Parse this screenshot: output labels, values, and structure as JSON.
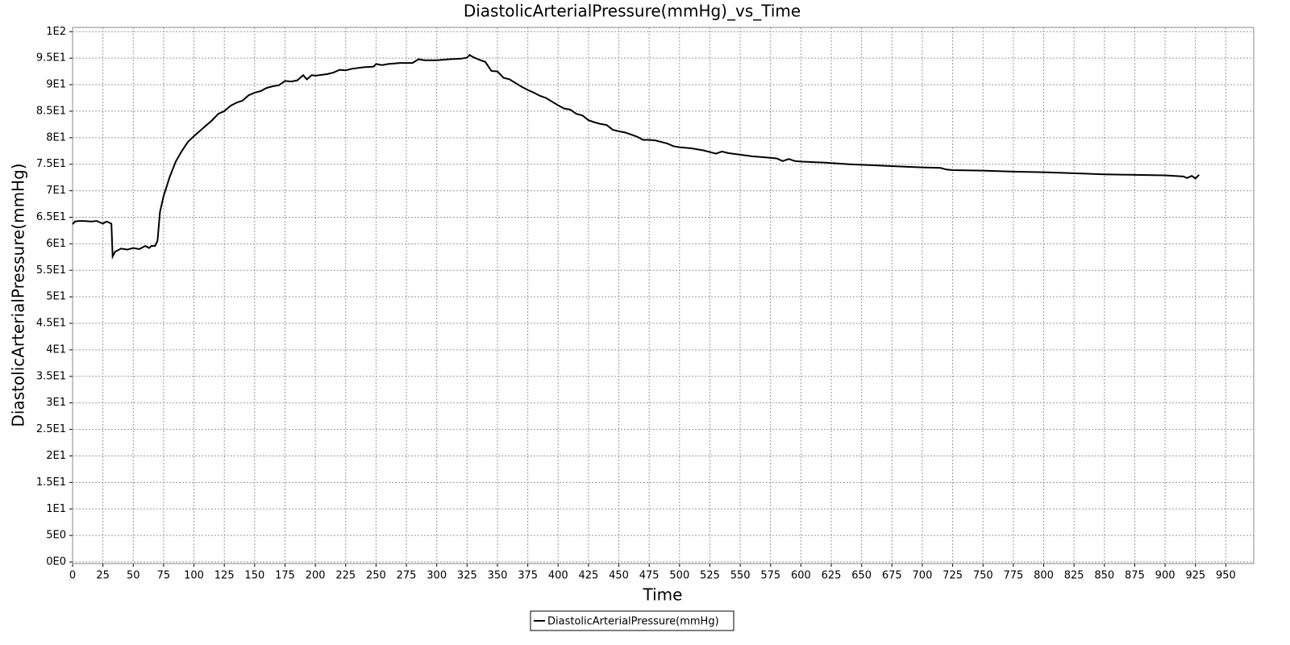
{
  "chart_data": {
    "type": "line",
    "title": "DiastolicArterialPressure(mmHg)_vs_Time",
    "x_label": "Time",
    "y_label": "DiastolicArterialPressure(mmHg)",
    "x": [
      0,
      2,
      5,
      10,
      15,
      20,
      25,
      28,
      32,
      33,
      35,
      40,
      45,
      50,
      55,
      60,
      63,
      65,
      68,
      70,
      72,
      75,
      80,
      85,
      90,
      95,
      100,
      105,
      110,
      115,
      120,
      125,
      130,
      135,
      140,
      145,
      150,
      155,
      160,
      165,
      170,
      175,
      180,
      185,
      190,
      193,
      197,
      200,
      210,
      215,
      220,
      225,
      230,
      240,
      248,
      250,
      255,
      260,
      270,
      280,
      285,
      290,
      300,
      310,
      320,
      325,
      327,
      330,
      335,
      340,
      345,
      350,
      355,
      360,
      365,
      370,
      375,
      380,
      385,
      390,
      395,
      400,
      405,
      410,
      415,
      420,
      425,
      430,
      435,
      440,
      445,
      450,
      455,
      460,
      465,
      470,
      475,
      480,
      485,
      490,
      495,
      500,
      510,
      520,
      525,
      530,
      535,
      540,
      550,
      560,
      570,
      580,
      585,
      590,
      595,
      600,
      620,
      640,
      660,
      680,
      700,
      715,
      720,
      725,
      750,
      775,
      800,
      825,
      850,
      875,
      900,
      915,
      918,
      922,
      925,
      928
    ],
    "series": [
      {
        "name": "DiastolicArterialPressure(mmHg)",
        "color": "#000000",
        "values": [
          63.7,
          64.2,
          64.3,
          64.3,
          64.2,
          64.3,
          63.8,
          64.2,
          63.8,
          57.6,
          58.5,
          59.1,
          58.9,
          59.2,
          59,
          59.6,
          59.2,
          59.6,
          59.6,
          60.6,
          66,
          69,
          72.6,
          75.5,
          77.5,
          79.2,
          80.3,
          81.3,
          82.3,
          83.3,
          84.5,
          85,
          86,
          86.6,
          87,
          88,
          88.5,
          88.8,
          89.4,
          89.7,
          89.9,
          90.7,
          90.6,
          90.8,
          91.8,
          91,
          91.8,
          91.7,
          92,
          92.3,
          92.8,
          92.7,
          93,
          93.3,
          93.4,
          93.9,
          93.7,
          93.9,
          94.1,
          94.1,
          94.8,
          94.6,
          94.6,
          94.8,
          94.9,
          95.1,
          95.6,
          95.2,
          94.7,
          94.3,
          92.6,
          92.5,
          91.3,
          91,
          90.3,
          89.6,
          89,
          88.5,
          87.9,
          87.5,
          86.8,
          86.1,
          85.5,
          85.3,
          84.5,
          84.2,
          83.3,
          82.9,
          82.6,
          82.4,
          81.5,
          81.2,
          81,
          80.6,
          80.2,
          79.6,
          79.6,
          79.5,
          79.2,
          78.9,
          78.4,
          78.2,
          78,
          77.6,
          77.3,
          77,
          77.4,
          77.1,
          76.8,
          76.5,
          76.3,
          76.1,
          75.6,
          76,
          75.6,
          75.5,
          75.3,
          75,
          74.8,
          74.6,
          74.4,
          74.3,
          74,
          73.9,
          73.8,
          73.6,
          73.5,
          73.3,
          73.1,
          73,
          72.9,
          72.7,
          72.4,
          72.8,
          72.3,
          73
        ]
      }
    ],
    "xlim": [
      0,
      973
    ],
    "xticks": [
      0,
      25,
      50,
      75,
      100,
      125,
      150,
      175,
      200,
      225,
      250,
      275,
      300,
      325,
      350,
      375,
      400,
      425,
      450,
      475,
      500,
      525,
      550,
      575,
      600,
      625,
      650,
      675,
      700,
      725,
      750,
      775,
      800,
      825,
      850,
      875,
      900,
      925,
      950
    ],
    "ylim": [
      -0.3,
      100.8
    ],
    "yticks": [
      {
        "value": 0,
        "label": "0E0"
      },
      {
        "value": 5,
        "label": "5E0"
      },
      {
        "value": 10,
        "label": "1E1"
      },
      {
        "value": 15,
        "label": "1.5E1"
      },
      {
        "value": 20,
        "label": "2E1"
      },
      {
        "value": 25,
        "label": "2.5E1"
      },
      {
        "value": 30,
        "label": "3E1"
      },
      {
        "value": 35,
        "label": "3.5E1"
      },
      {
        "value": 40,
        "label": "4E1"
      },
      {
        "value": 45,
        "label": "4.5E1"
      },
      {
        "value": 50,
        "label": "5E1"
      },
      {
        "value": 55,
        "label": "5.5E1"
      },
      {
        "value": 60,
        "label": "6E1"
      },
      {
        "value": 65,
        "label": "6.5E1"
      },
      {
        "value": 70,
        "label": "7E1"
      },
      {
        "value": 75,
        "label": "7.5E1"
      },
      {
        "value": 80,
        "label": "8E1"
      },
      {
        "value": 85,
        "label": "8.5E1"
      },
      {
        "value": 90,
        "label": "9E1"
      },
      {
        "value": 95,
        "label": "9.5E1"
      },
      {
        "value": 100,
        "label": "1E2"
      }
    ],
    "grid": true
  }
}
